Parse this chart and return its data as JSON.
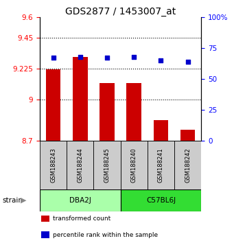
{
  "title": "GDS2877 / 1453007_at",
  "samples": [
    "GSM188243",
    "GSM188244",
    "GSM188245",
    "GSM188240",
    "GSM188241",
    "GSM188242"
  ],
  "transformed_counts": [
    9.22,
    9.31,
    9.12,
    9.12,
    8.85,
    8.78
  ],
  "percentile_ranks": [
    67,
    68,
    67,
    67.5,
    65,
    64
  ],
  "ymin": 8.7,
  "ymax": 9.6,
  "yticks": [
    8.7,
    9.0,
    9.225,
    9.45,
    9.6
  ],
  "ytick_labels": [
    "8.7",
    "9",
    "9.225",
    "9.45",
    "9.6"
  ],
  "y2min": 0,
  "y2max": 100,
  "y2ticks": [
    0,
    25,
    50,
    75,
    100
  ],
  "y2tick_labels": [
    "0",
    "25",
    "50",
    "75",
    "100%"
  ],
  "groups": [
    {
      "name": "DBA2J",
      "indices": [
        0,
        1,
        2
      ],
      "color": "#aaffaa"
    },
    {
      "name": "C57BL6J",
      "indices": [
        3,
        4,
        5
      ],
      "color": "#33dd33"
    }
  ],
  "bar_color": "#cc0000",
  "dot_color": "#0000cc",
  "bar_bottom": 8.7,
  "dotted_lines": [
    9.45,
    9.225,
    9.0
  ],
  "legend_items": [
    {
      "color": "#cc0000",
      "label": "transformed count"
    },
    {
      "color": "#0000cc",
      "label": "percentile rank within the sample"
    }
  ],
  "strain_label": "strain",
  "title_fontsize": 10,
  "tick_fontsize": 7.5,
  "label_fontsize": 7.5
}
